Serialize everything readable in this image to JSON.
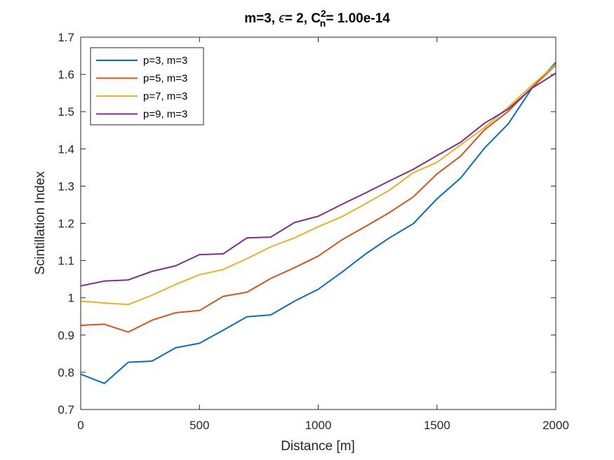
{
  "chart_data": {
    "type": "line",
    "title": {
      "prefix": "m=3, ",
      "epsilon_symbol": "ϵ",
      "epsilon_value": "= 2, ",
      "cn_base": "C",
      "cn_superscript": "2",
      "cn_subscript": "n",
      "cn_value": "= 1.00e-14"
    },
    "xlabel": "Distance [m]",
    "ylabel": "Scintillation Index",
    "xlim": [
      0,
      2000
    ],
    "ylim": [
      0.7,
      1.7
    ],
    "xticks": [
      "0",
      "500",
      "1000",
      "1500",
      "2000"
    ],
    "yticks": [
      "0.7",
      "0.8",
      "0.9",
      "1",
      "1.1",
      "1.2",
      "1.3",
      "1.4",
      "1.5",
      "1.6",
      "1.7"
    ],
    "legend_position": "top-left",
    "x": [
      0,
      100,
      200,
      300,
      400,
      500,
      600,
      700,
      800,
      900,
      1000,
      1100,
      1200,
      1300,
      1400,
      1500,
      1600,
      1700,
      1800,
      1900,
      2000
    ],
    "series": [
      {
        "name": "p=3, m=3",
        "color": "#0072BD",
        "values": [
          0.795,
          0.77,
          0.827,
          0.83,
          0.866,
          0.878,
          0.913,
          0.949,
          0.954,
          0.991,
          1.023,
          1.069,
          1.118,
          1.161,
          1.199,
          1.266,
          1.322,
          1.402,
          1.467,
          1.563,
          1.632
        ]
      },
      {
        "name": "p=5, m=3",
        "color": "#D95319",
        "values": [
          0.926,
          0.929,
          0.908,
          0.94,
          0.96,
          0.966,
          1.004,
          1.015,
          1.052,
          1.081,
          1.112,
          1.156,
          1.192,
          1.229,
          1.271,
          1.333,
          1.381,
          1.451,
          1.501,
          1.565,
          1.625
        ]
      },
      {
        "name": "p=7, m=3",
        "color": "#EDB120",
        "values": [
          0.991,
          0.986,
          0.982,
          1.007,
          1.036,
          1.062,
          1.076,
          1.105,
          1.137,
          1.161,
          1.191,
          1.218,
          1.253,
          1.289,
          1.336,
          1.364,
          1.411,
          1.457,
          1.512,
          1.571,
          1.627
        ]
      },
      {
        "name": "p=9, m=3",
        "color": "#7E2F8E",
        "values": [
          1.032,
          1.045,
          1.048,
          1.071,
          1.086,
          1.116,
          1.118,
          1.161,
          1.163,
          1.202,
          1.219,
          1.251,
          1.282,
          1.314,
          1.345,
          1.382,
          1.418,
          1.469,
          1.507,
          1.563,
          1.603
        ]
      }
    ]
  }
}
